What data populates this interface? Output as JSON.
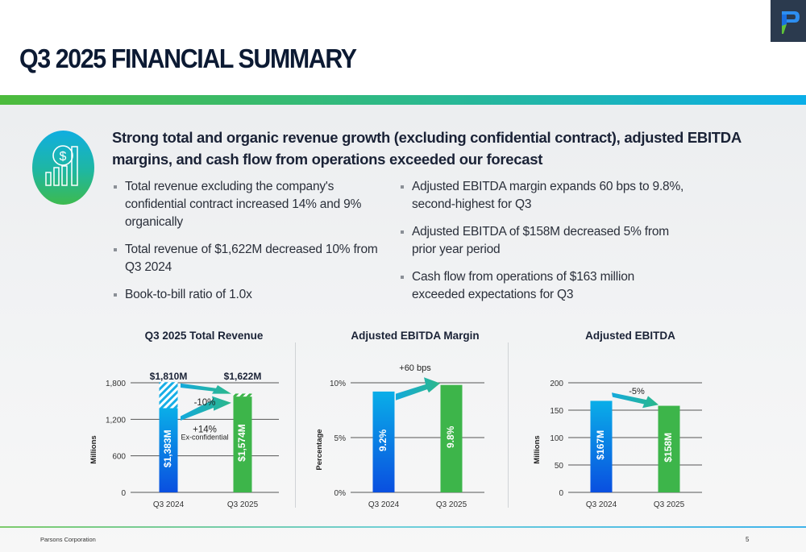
{
  "header": {
    "title": "Q3 2025 FINANCIAL SUMMARY",
    "logo": "parsons-p-logo"
  },
  "headline": "Strong total and organic revenue growth (excluding confidential contract), adjusted EBITDA margins, and cash flow from operations exceeded our forecast",
  "icon": "dollar-bar-chart-icon",
  "bullets_left": [
    "Total revenue excluding the company's confidential contract increased 14% and 9% organically",
    "Total revenue of $1,622M decreased 10% from Q3 2024",
    "Book-to-bill ratio of 1.0x"
  ],
  "bullets_right": [
    "Adjusted EBITDA margin expands 60 bps to 9.8%, second-highest for Q3",
    "Adjusted EBITDA of $158M decreased 5% from prior year period",
    "Cash flow from operations of $163 million exceeded expectations for Q3"
  ],
  "footer": {
    "company": "Parsons Corporation",
    "page": "5"
  },
  "colors": {
    "navy": "#0c1a33",
    "blue_top": "#0aaee8",
    "blue_bottom": "#0a4fe0",
    "green": "#3db54a",
    "arrow": "#1fb3c8"
  },
  "chart_data": [
    {
      "type": "bar",
      "title": "Q3 2025 Total Revenue",
      "ylabel": "Millions",
      "categories": [
        "Q3 2024",
        "Q3 2025"
      ],
      "ylim": [
        0,
        1800
      ],
      "yticks": [
        0,
        600,
        1200,
        1800
      ],
      "ytick_labels": [
        "0",
        "600",
        "1,200",
        "1,800"
      ],
      "series": [
        {
          "name": "Ex-confidential",
          "values": [
            1383,
            1574
          ],
          "labels": [
            "$1,383M",
            "$1,574M"
          ]
        },
        {
          "name": "Confidential contract (hatched)",
          "values": [
            427,
            48
          ]
        }
      ],
      "totals": [
        1810,
        1622
      ],
      "total_labels": [
        "$1,810M",
        "$1,622M"
      ],
      "annotations": [
        {
          "text": "-10%",
          "from": "total Q3 2024",
          "to": "total Q3 2025"
        },
        {
          "text": "+14%",
          "subtext": "Ex-confidential",
          "from": "ex-conf Q3 2024",
          "to": "ex-conf Q3 2025"
        }
      ]
    },
    {
      "type": "bar",
      "title": "Adjusted EBITDA Margin",
      "ylabel": "Percentage",
      "categories": [
        "Q3 2024",
        "Q3 2025"
      ],
      "ylim": [
        0,
        10
      ],
      "yticks": [
        0,
        5,
        10
      ],
      "ytick_labels": [
        "0%",
        "5%",
        "10%"
      ],
      "values": [
        9.2,
        9.8
      ],
      "labels": [
        "9.2%",
        "9.8%"
      ],
      "annotations": [
        {
          "text": "+60 bps"
        }
      ]
    },
    {
      "type": "bar",
      "title": "Adjusted EBITDA",
      "ylabel": "Millions",
      "categories": [
        "Q3 2024",
        "Q3 2025"
      ],
      "ylim": [
        0,
        200
      ],
      "yticks": [
        0,
        50,
        100,
        150,
        200
      ],
      "ytick_labels": [
        "0",
        "50",
        "100",
        "150",
        "200"
      ],
      "values": [
        167,
        158
      ],
      "labels": [
        "$167M",
        "$158M"
      ],
      "annotations": [
        {
          "text": "-5%"
        }
      ]
    }
  ]
}
